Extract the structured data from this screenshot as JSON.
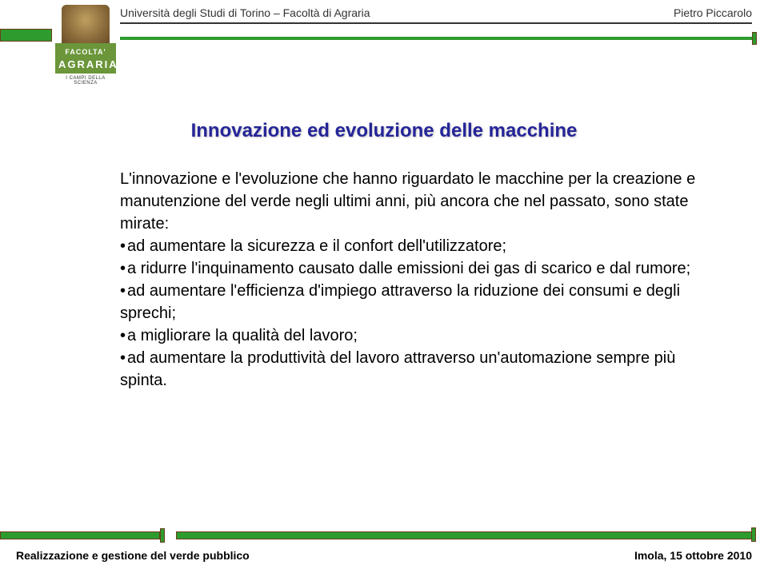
{
  "header": {
    "left": "Università degli Studi di Torino – Facoltà di Agraria",
    "right": "Pietro Piccarolo"
  },
  "logo": {
    "facolta": "FACOLTA'",
    "agraria": "AGRARIA",
    "campi": "I CAMPI DELLA SCIENZA"
  },
  "title": "Innovazione ed evoluzione delle macchine",
  "intro": "L'innovazione e l'evoluzione che hanno riguardato le macchine per la creazione e manutenzione del verde negli ultimi anni, più ancora che nel passato, sono state mirate:",
  "bullets": [
    "ad aumentare la sicurezza e il confort dell'utilizzatore;",
    "a ridurre l'inquinamento causato dalle emissioni dei gas di scarico e dal rumore;",
    "ad aumentare l'efficienza d'impiego attraverso la riduzione dei consumi e degli sprechi;",
    "a migliorare la qualità del lavoro;",
    "ad aumentare la produttività del lavoro attraverso un'automazione sempre più spinta."
  ],
  "footer": {
    "left": "Realizzazione e gestione del verde pubblico",
    "right": "Imola, 15 ottobre 2010"
  },
  "colors": {
    "accent_green": "#2e9b2e",
    "title_blue": "#252599",
    "logo_green": "#6b963a"
  }
}
